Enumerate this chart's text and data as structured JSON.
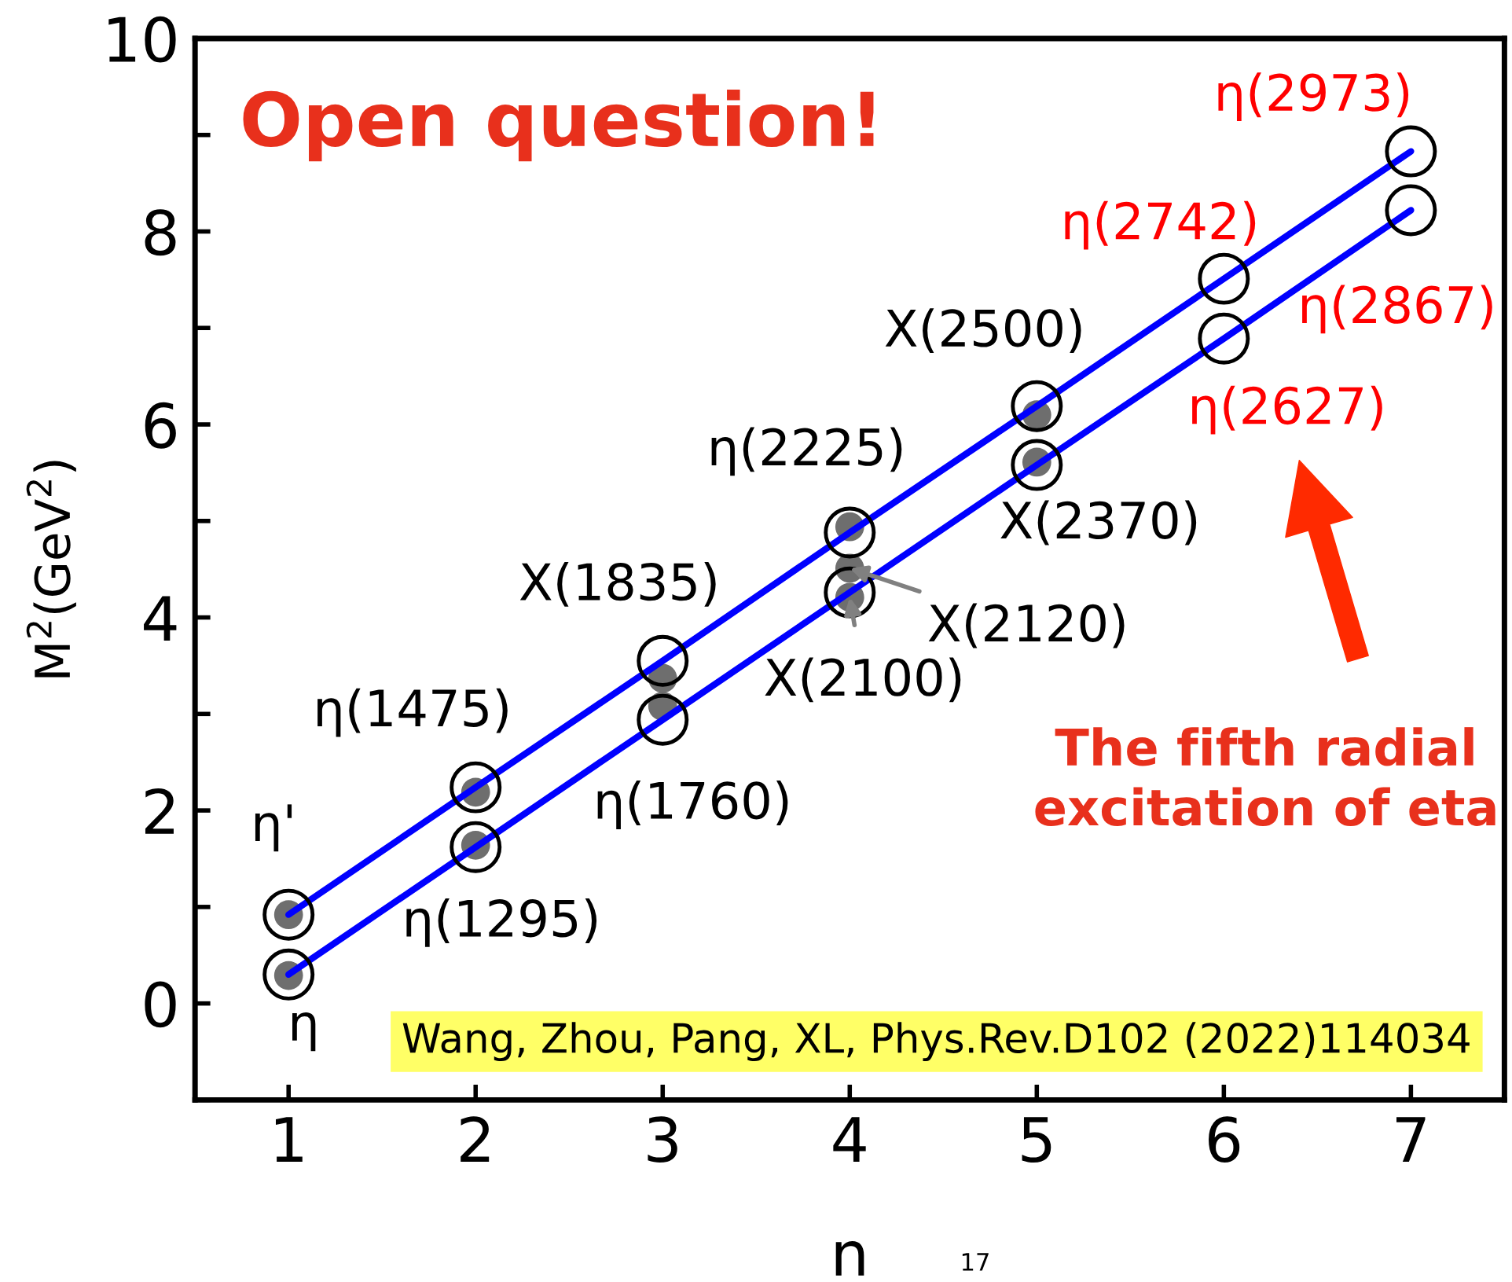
{
  "chart_data": {
    "type": "line",
    "xlabel": "n",
    "ylabel": "M$^{2}$(GeV$^{2}$)",
    "xlim": [
      0.5,
      7.5
    ],
    "ylim": [
      -1,
      10
    ],
    "xticks": [
      1,
      2,
      3,
      4,
      5,
      6,
      7
    ],
    "yticks": [
      0,
      2,
      4,
      6,
      8,
      10
    ],
    "grid": false,
    "line_style": "solid",
    "series": [
      {
        "color": "#0000ff",
        "marker": "circle",
        "x": [
          1,
          2,
          3,
          4,
          5,
          6,
          7
        ],
        "values": [
          0.92,
          2.24,
          3.55,
          4.88,
          6.19,
          7.51,
          8.83
        ]
      },
      {
        "color": "#0000ff",
        "marker": "circle",
        "x": [
          1,
          2,
          3,
          4,
          5,
          6,
          7
        ],
        "values": [
          0.3,
          1.62,
          2.94,
          4.26,
          5.58,
          6.89,
          8.22
        ]
      },
      {
        "type": "scatter",
        "color": "#6e6e6e",
        "marker": "circle",
        "x": [
          1,
          1,
          2,
          2,
          3,
          3,
          4,
          4,
          4,
          5,
          5
        ],
        "values": [
          0.92,
          0.29,
          1.64,
          2.19,
          3.08,
          3.37,
          4.94,
          4.51,
          4.21,
          5.61,
          6.1
        ]
      }
    ],
    "annotations": [
      "η'",
      "η",
      "η(1475)",
      "η(1295)",
      "X(1835)",
      "η(1760)",
      "η(2225)",
      {
        "text": "X(2100)",
        "x": 4,
        "y": 4.21
      },
      {
        "text": "X(2120)",
        "x": 4,
        "y": 4.51
      },
      "X(2500)",
      "X(2370)",
      "η(2742)",
      "η(2627)",
      "η(2973)",
      "η(2867)",
      "Open question!",
      "The fifth radial\nexcitation of eta",
      "Wang, Zhou, Pang, XL, Phys.Rev.D102 (2022)114034",
      "17"
    ]
  }
}
